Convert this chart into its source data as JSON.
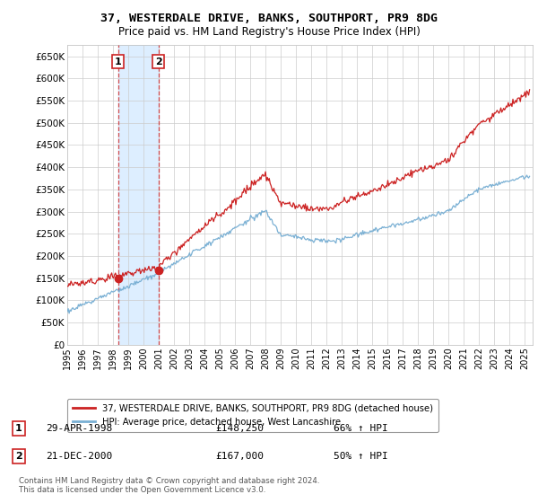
{
  "title": "37, WESTERDALE DRIVE, BANKS, SOUTHPORT, PR9 8DG",
  "subtitle": "Price paid vs. HM Land Registry's House Price Index (HPI)",
  "ylim": [
    0,
    675000
  ],
  "yticks": [
    0,
    50000,
    100000,
    150000,
    200000,
    250000,
    300000,
    350000,
    400000,
    450000,
    500000,
    550000,
    600000,
    650000
  ],
  "ytick_labels": [
    "£0",
    "£50K",
    "£100K",
    "£150K",
    "£200K",
    "£250K",
    "£300K",
    "£350K",
    "£400K",
    "£450K",
    "£500K",
    "£550K",
    "£600K",
    "£650K"
  ],
  "background_color": "#ffffff",
  "plot_bg_color": "#ffffff",
  "grid_color": "#cccccc",
  "hpi_line_color": "#7ab0d4",
  "price_line_color": "#cc2222",
  "shade_color": "#ddeeff",
  "purchase1_x": 1998.33,
  "purchase1_y": 148250,
  "purchase1_label": "1",
  "purchase1_date": "29-APR-1998",
  "purchase1_price": "£148,250",
  "purchase1_hpi": "66% ↑ HPI",
  "purchase2_x": 2000.97,
  "purchase2_y": 167000,
  "purchase2_label": "2",
  "purchase2_date": "21-DEC-2000",
  "purchase2_price": "£167,000",
  "purchase2_hpi": "50% ↑ HPI",
  "legend_entry1": "37, WESTERDALE DRIVE, BANKS, SOUTHPORT, PR9 8DG (detached house)",
  "legend_entry2": "HPI: Average price, detached house, West Lancashire",
  "footer": "Contains HM Land Registry data © Crown copyright and database right 2024.\nThis data is licensed under the Open Government Licence v3.0.",
  "xmin": 1995.0,
  "xmax": 2025.5
}
